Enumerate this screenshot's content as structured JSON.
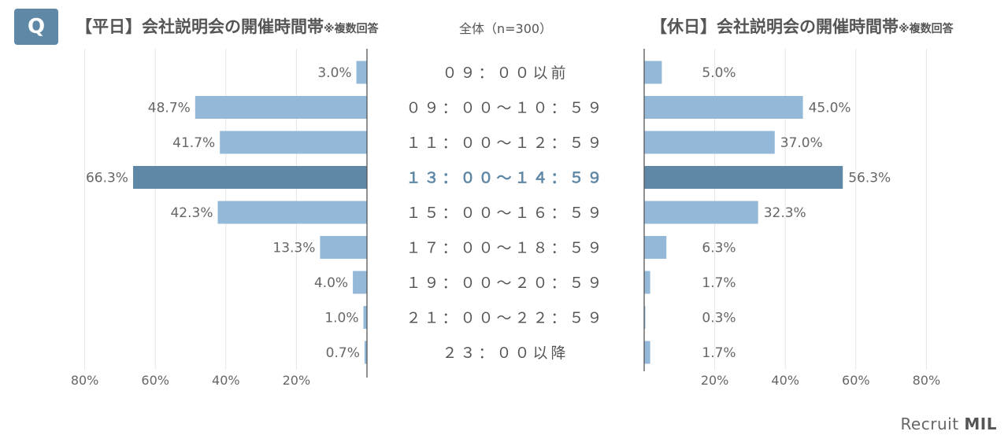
{
  "header": {
    "q_label": "Q",
    "left_title": "【平日】会社説明会の開催時間帯",
    "right_title": "【休日】会社説明会の開催時間帯",
    "note": "※複数回答",
    "total": "全体（n=300）"
  },
  "brand": {
    "name": "Recruit",
    "suffix": "MIL"
  },
  "colors": {
    "bar": "#94b9d8",
    "highlight": "#5f88a6",
    "highlight_text": "#5f88a6",
    "grid": "#e6e6e6"
  },
  "chart_data": [
    {
      "type": "bar",
      "title": "【平日】会社説明会の開催時間帯",
      "orientation": "horizontal",
      "direction": "right-to-left",
      "categories": [
        "０９：００以前",
        "０９：００〜１０：５９",
        "１１：００〜１２：５９",
        "１３：００〜１４：５９",
        "１５：００〜１６：５９",
        "１７：００〜１８：５９",
        "１９：００〜２０：５９",
        "２１：００〜２２：５９",
        "２３：００以降"
      ],
      "values": [
        3.0,
        48.7,
        41.7,
        66.3,
        42.3,
        13.3,
        4.0,
        1.0,
        0.7
      ],
      "data_labels": [
        "3.0%",
        "48.7%",
        "41.7%",
        "66.3%",
        "42.3%",
        "13.3%",
        "4.0%",
        "1.0%",
        "0.7%"
      ],
      "highlight_index": 3,
      "xlim": [
        0,
        80
      ],
      "tick_labels": [
        "80%",
        "60%",
        "40%",
        "20%"
      ],
      "grid": true
    },
    {
      "type": "bar",
      "title": "【休日】会社説明会の開催時間帯",
      "orientation": "horizontal",
      "direction": "left-to-right",
      "categories": [
        "０９：００以前",
        "０９：００〜１０：５９",
        "１１：００〜１２：５９",
        "１３：００〜１４：５９",
        "１５：００〜１６：５９",
        "１７：００〜１８：５９",
        "１９：００〜２０：５９",
        "２１：００〜２２：５９",
        "２３：００以降"
      ],
      "values": [
        5.0,
        45.0,
        37.0,
        56.3,
        32.3,
        6.3,
        1.7,
        0.3,
        1.7
      ],
      "data_labels": [
        "5.0%",
        "45.0%",
        "37.0%",
        "56.3%",
        "32.3%",
        "6.3%",
        "1.7%",
        "0.3%",
        "1.7%"
      ],
      "highlight_index": 3,
      "xlim": [
        0,
        80
      ],
      "tick_labels": [
        "20%",
        "40%",
        "60%",
        "80%"
      ],
      "grid": true
    }
  ]
}
